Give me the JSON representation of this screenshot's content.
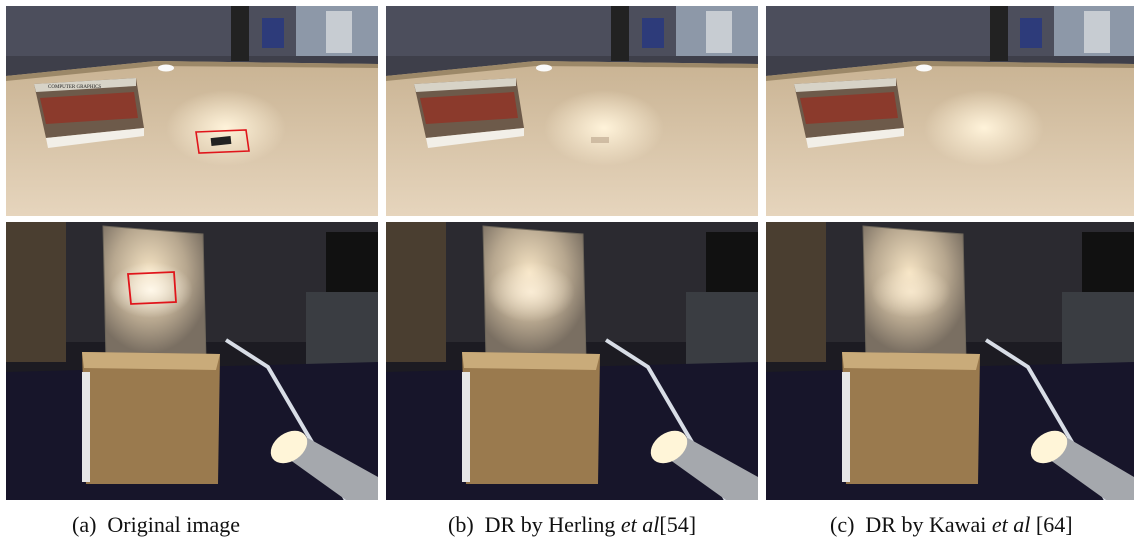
{
  "figure": {
    "captions": [
      {
        "tag": "(a)",
        "label": "Original image",
        "author": "",
        "italic": "",
        "ref": ""
      },
      {
        "tag": "(b)",
        "label": "DR by",
        "author": "Herling",
        "italic": "et al",
        "ref": "[54]"
      },
      {
        "tag": "(c)",
        "label": "DR by",
        "author": "Kawai",
        "italic": "et al",
        "ref": " [64]"
      }
    ],
    "book_title": "COMPUTER GRAPHICS",
    "highlight_color": "#e0151b"
  }
}
